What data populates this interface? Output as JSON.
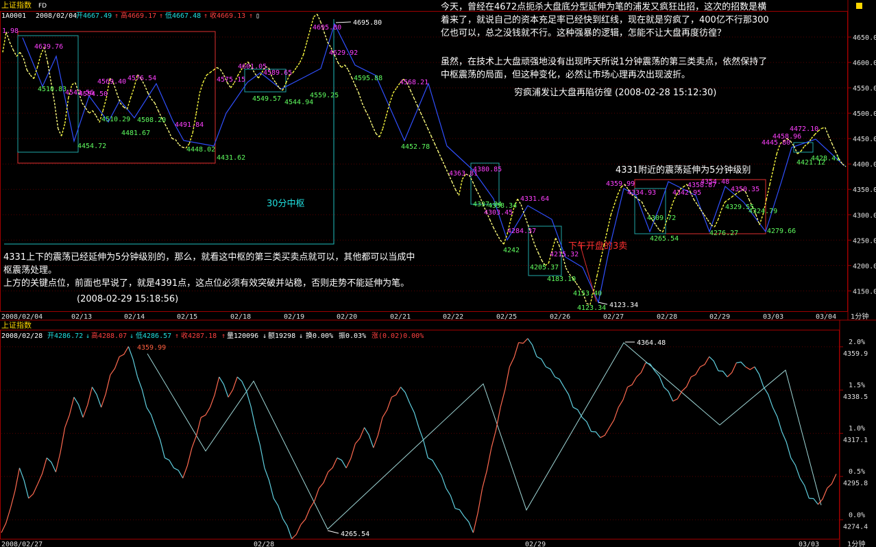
{
  "top": {
    "title": "上证指数",
    "title_tag": "FD",
    "info_code": "1A0001",
    "info_date": "2008/02/04",
    "open": "开4667.49",
    "high": "高4669.17",
    "low": "低4667.48",
    "close": "收4669.13",
    "top_left_value": "1.98",
    "period_label": "1分钟"
  },
  "bottom": {
    "title": "上证指数",
    "info_date": "2008/02/28",
    "open": "开4286.72",
    "high": "高4288.07",
    "low": "低4286.57",
    "close": "收4287.18",
    "volume": "量120096",
    "amount": "额19298",
    "turnover": "换0.00%",
    "amplitude": "振0.03%",
    "change": "涨(0.02)0.00%",
    "period_label": "1分钟"
  },
  "notes": {
    "right_p1": [
      "今天，曾经在4672点扼杀大盘底分型延伸为笔的浦发又疯狂出招，这次的招数是横",
      "着来了，就说自己的资本充足率已经快到红线，现在就是穷疯了，400亿不行那300",
      "亿也可以，总之没钱就不行。这种强暴的逻辑，怎能不让大盘再度彷徨？"
    ],
    "right_p2": [
      "虽然，在技术上大盘顽强地没有出现昨天所说1分钟震荡的第三类卖点，依然保持了",
      "中枢震荡的局面，但这种变化，必然让市场心理再次出现波折。"
    ],
    "right_title": "穷疯浦发让大盘再陷彷徨  (2008-02-28 15:12:30)",
    "left_p": [
      "4331上下的震荡已经延伸为5分钟级别的，那么，就看这中枢的第三类买卖点就可以，其他都可以当成中",
      "枢震荡处理。",
      "上方的关键点位，前面也早说了，就是4391点，这点位必须有效突破并站稳，否则走势不能延伸为笔。"
    ],
    "left_date": "(2008-02-29 15:18:56)",
    "pivot_30": "30分中枢",
    "pivot_4331": "4331附近的震荡延伸为5分钟级别",
    "afternoon_sell": "下午开盘的3卖"
  },
  "chart_data": [
    {
      "type": "line",
      "title": "上证指数",
      "xlabel": "",
      "ylabel": "",
      "x_ticks": [
        "2008/02/04",
        "02/13",
        "02/14",
        "02/15",
        "02/18",
        "02/19",
        "02/20",
        "02/21",
        "02/22",
        "02/25",
        "02/26",
        "02/27",
        "02/28",
        "02/29",
        "03/03",
        "03/04"
      ],
      "y_ticks": [
        4650,
        4600,
        4550,
        4500,
        4450,
        4400,
        4350,
        4300,
        4250,
        4200,
        4150
      ],
      "ylim": [
        4110,
        4700
      ],
      "grid": true,
      "series": [
        {
          "values": [
            4620,
            4660,
            4640,
            4625,
            4612,
            4620,
            4608,
            4585,
            4575,
            4568,
            4590,
            4615,
            4630,
            4600,
            4560,
            4520,
            4470,
            4455,
            4480,
            4530,
            4556,
            4560,
            4540,
            4520,
            4510,
            4500,
            4505,
            4495,
            4482,
            4505,
            4530,
            4569,
            4560,
            4540,
            4520,
            4512,
            4508,
            4530,
            4550,
            4576,
            4568,
            4556,
            4540,
            4528,
            4520,
            4505,
            4491,
            4478,
            4465,
            4450,
            4448,
            4438,
            4433,
            4431,
            4440,
            4462,
            4500,
            4540,
            4561,
            4575,
            4580,
            4585,
            4590,
            4586,
            4575,
            4560,
            4550,
            4560,
            4574,
            4585,
            4596,
            4601,
            4590,
            4578,
            4569,
            4580,
            4592,
            4589,
            4570,
            4560,
            4550,
            4545,
            4560,
            4575,
            4580,
            4590,
            4600,
            4615,
            4640,
            4665,
            4690,
            4695,
            4680,
            4660,
            4640,
            4629,
            4615,
            4600,
            4590,
            4595,
            4585,
            4570,
            4555,
            4540,
            4520,
            4505,
            4492,
            4475,
            4460,
            4453,
            4470,
            4495,
            4520,
            4540,
            4550,
            4560,
            4567,
            4560,
            4545,
            4530,
            4515,
            4500,
            4485,
            4470,
            4455,
            4440,
            4425,
            4410,
            4395,
            4380,
            4365,
            4350,
            4338,
            4370,
            4380,
            4378,
            4365,
            4350,
            4337,
            4320,
            4305,
            4290,
            4275,
            4262,
            4250,
            4242,
            4262,
            4290,
            4315,
            4331,
            4320,
            4300,
            4280,
            4260,
            4240,
            4225,
            4210,
            4200,
            4205,
            4230,
            4254,
            4240,
            4220,
            4195,
            4183,
            4175,
            4165,
            4155,
            4145,
            4125,
            4123,
            4150,
            4180,
            4210,
            4240,
            4270,
            4300,
            4320,
            4340,
            4355,
            4360,
            4350,
            4340,
            4335,
            4330,
            4325,
            4310,
            4300,
            4290,
            4280,
            4270,
            4266,
            4285,
            4305,
            4325,
            4340,
            4350,
            4355,
            4360,
            4345,
            4330,
            4320,
            4310,
            4300,
            4290,
            4280,
            4276,
            4290,
            4310,
            4325,
            4330,
            4335,
            4340,
            4345,
            4350,
            4345,
            4330,
            4315,
            4300,
            4280,
            4300,
            4330,
            4360,
            4390,
            4420,
            4440,
            4445,
            4450,
            4445,
            4435,
            4420,
            4425,
            4435,
            4440,
            4450,
            4458,
            4465,
            4470,
            4472,
            4455,
            4440,
            4425,
            4410,
            4400,
            4395
          ]
        }
      ],
      "annotations": [
        "4639.76",
        "4510.83",
        "4543.56",
        "4554.50",
        "4510.29",
        "4454.72",
        "4569.40",
        "4481.67",
        "4576.54",
        "4508.20",
        "4491.84",
        "4448.02",
        "4431.62",
        "4575.15",
        "4601.05",
        "4589.65",
        "4549.57",
        "4544.94",
        "4559.25",
        "4695.80",
        "4629.92",
        "4595.88",
        "4568.21",
        "4452.78",
        "4380.85",
        "4363.81",
        "4337.34",
        "4338.34",
        "4303.45",
        "4284.37",
        "4242",
        "4331.64",
        "4215.32",
        "4205.37",
        "4183.10",
        "4153.40",
        "4123.34",
        "4123.34",
        "4359.99",
        "4334.93",
        "4309.72",
        "4265.54",
        "4342.95",
        "4358.87",
        "4354.48",
        "4350.35",
        "4329.55",
        "4276.27",
        "4324.79",
        "4279.66",
        "4445.80",
        "4458.96",
        "4472.10",
        "4421.12",
        "4428.41"
      ]
    },
    {
      "type": "line",
      "title": "上证指数",
      "xlabel": "",
      "ylabel": "",
      "x_ticks": [
        "2008/02/27",
        "02/28",
        "02/29",
        "03/03"
      ],
      "y_ticks_left": [
        "2.0%",
        "1.5%",
        "1.0%",
        "0.5%",
        "0.0%"
      ],
      "y_ticks_right": [
        4359.9,
        4338.5,
        4317.1,
        4295.8,
        4274.4
      ],
      "ylim": [
        4265,
        4368
      ],
      "grid": true,
      "series": [
        {
          "values": [
            4268,
            4280,
            4300,
            4285,
            4292,
            4305,
            4298,
            4320,
            4335,
            4325,
            4340,
            4330,
            4346,
            4355,
            4360,
            4345,
            4330,
            4320,
            4305,
            4300,
            4295,
            4310,
            4325,
            4330,
            4345,
            4335,
            4345,
            4338,
            4320,
            4300,
            4285,
            4275,
            4265,
            4272,
            4280,
            4290,
            4298,
            4305,
            4300,
            4312,
            4320,
            4310,
            4325,
            4335,
            4340,
            4332,
            4320,
            4305,
            4300,
            4290,
            4280,
            4276,
            4268,
            4290,
            4310,
            4330,
            4350,
            4362,
            4364,
            4355,
            4350,
            4345,
            4340,
            4330,
            4325,
            4318,
            4315,
            4320,
            4330,
            4340,
            4345,
            4352,
            4348,
            4340,
            4333,
            4338,
            4345,
            4350,
            4355,
            4348,
            4345,
            4352,
            4350,
            4350,
            4340,
            4330,
            4318,
            4305,
            4295,
            4285,
            4282,
            4290,
            4297
          ]
        }
      ],
      "annotations": [
        "4359.99",
        "4364.48",
        "4265.54"
      ]
    }
  ]
}
